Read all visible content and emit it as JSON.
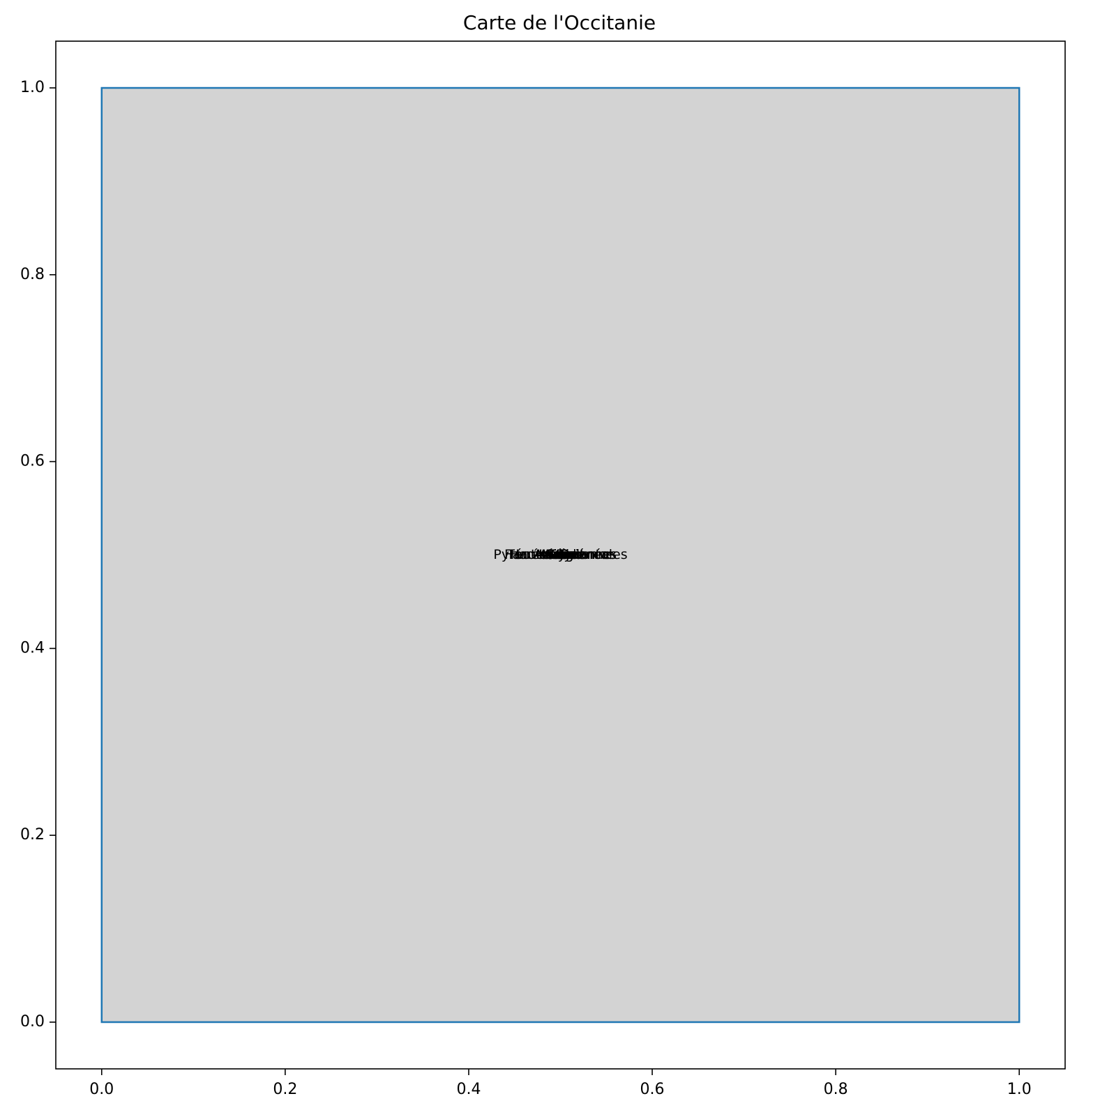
{
  "chart_data": {
    "type": "map",
    "title": "Carte de l'Occitanie",
    "xlabel": "",
    "ylabel": "",
    "xlim": [
      -0.05,
      1.05
    ],
    "ylim": [
      -0.05,
      1.05
    ],
    "x_ticks": [
      {
        "value": 0.0,
        "label": "0.0"
      },
      {
        "value": 0.2,
        "label": "0.2"
      },
      {
        "value": 0.4,
        "label": "0.4"
      },
      {
        "value": 0.6,
        "label": "0.6"
      },
      {
        "value": 0.8,
        "label": "0.8"
      },
      {
        "value": 1.0,
        "label": "1.0"
      }
    ],
    "y_ticks": [
      {
        "value": 0.0,
        "label": "0.0"
      },
      {
        "value": 0.2,
        "label": "0.2"
      },
      {
        "value": 0.4,
        "label": "0.4"
      },
      {
        "value": 0.6,
        "label": "0.6"
      },
      {
        "value": 0.8,
        "label": "0.8"
      },
      {
        "value": 1.0,
        "label": "1.0"
      }
    ],
    "grid": false,
    "region": {
      "polygon": [
        [
          0,
          0
        ],
        [
          1,
          0
        ],
        [
          1,
          1
        ],
        [
          0,
          1
        ],
        [
          0,
          0
        ]
      ],
      "fill_color": "#d3d3d3",
      "edge_color": "#1f77b4"
    },
    "labels": [
      {
        "text": "Ariège",
        "x": 0.5,
        "y": 0.5
      },
      {
        "text": "Aude",
        "x": 0.5,
        "y": 0.5
      },
      {
        "text": "Aveyron",
        "x": 0.5,
        "y": 0.5
      },
      {
        "text": "Gard",
        "x": 0.5,
        "y": 0.5
      },
      {
        "text": "Haute-Garonne",
        "x": 0.5,
        "y": 0.5
      },
      {
        "text": "Gers",
        "x": 0.5,
        "y": 0.5
      },
      {
        "text": "Hérault",
        "x": 0.5,
        "y": 0.5
      },
      {
        "text": "Lot",
        "x": 0.5,
        "y": 0.5
      },
      {
        "text": "Lozère",
        "x": 0.5,
        "y": 0.5
      },
      {
        "text": "Hautes-Pyrénées",
        "x": 0.5,
        "y": 0.5
      },
      {
        "text": "Pyrénées-Orientales",
        "x": 0.5,
        "y": 0.5
      },
      {
        "text": "Tarn",
        "x": 0.5,
        "y": 0.5
      },
      {
        "text": "Tarn-et-Garonne",
        "x": 0.5,
        "y": 0.5
      }
    ],
    "axis_color": "#000000",
    "background_color": "#ffffff"
  }
}
